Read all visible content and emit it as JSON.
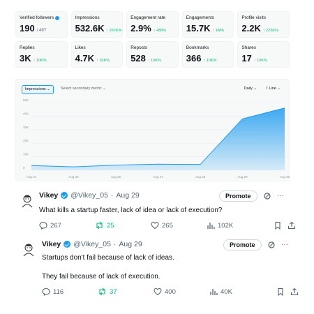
{
  "stats": [
    [
      {
        "label": "Verified followers",
        "value": "190",
        "sub": "/ 497",
        "change": "",
        "verified": true
      },
      {
        "label": "Impressions",
        "value": "532.6K",
        "sub": "",
        "change": "↑ 267K%"
      },
      {
        "label": "Engagement rate",
        "value": "2.9%",
        "sub": "",
        "change": "↑ 486%"
      },
      {
        "label": "Engagements",
        "value": "15.7K",
        "sub": "",
        "change": "↑ 1M%"
      },
      {
        "label": "Profile visits",
        "value": "2.2K",
        "sub": "",
        "change": "↑ 223K%"
      }
    ],
    [
      {
        "label": "Replies",
        "value": "3K",
        "sub": "",
        "change": "↑ 10K%"
      },
      {
        "label": "Likes",
        "value": "4.7K",
        "sub": "",
        "change": "↑ 10K%"
      },
      {
        "label": "Reposts",
        "value": "528",
        "sub": "",
        "change": "↑ 10K%"
      },
      {
        "label": "Bookmarks",
        "value": "366",
        "sub": "",
        "change": "↑ 10K%"
      },
      {
        "label": "Shares",
        "value": "17",
        "sub": "",
        "change": "↑ 10K%"
      }
    ]
  ],
  "chart_toolbar": {
    "metric": "Impressions ⌄",
    "secondary": "Select secondary metric ⌄",
    "period": "Daily ⌄",
    "style": "Line ⌄"
  },
  "chart_data": {
    "type": "area",
    "x": [
      "Aug 24",
      "Aug 25",
      "Aug 26",
      "Aug 27",
      "Aug 28",
      "Aug 29",
      "Aug 30"
    ],
    "values": [
      3500,
      2500,
      3800,
      4500,
      4300,
      38000,
      46000
    ],
    "yticks": [
      "0",
      "10K",
      "20K",
      "30K",
      "40K",
      "50K"
    ],
    "ylim": [
      0,
      50000
    ],
    "color": "#1d9bf0",
    "grid": true
  },
  "tweets": [
    {
      "name": "Vikey",
      "handle": "@Vikey_05",
      "dot": "·",
      "date": "Aug 29",
      "promote": "Promote",
      "lines": [
        "What kills a startup faster, lack of idea or lack of execution?"
      ],
      "replies": "267",
      "reposts": "25",
      "likes": "265",
      "views": "102K"
    },
    {
      "name": "Vikey",
      "handle": "@Vikey_05",
      "dot": "·",
      "date": "Aug 29",
      "promote": "Promote",
      "lines": [
        "Startups don't fail because of lack of ideas.",
        "They fail because of lack of execution."
      ],
      "replies": "116",
      "reposts": "37",
      "likes": "400",
      "views": "40K"
    }
  ],
  "icons": {
    "verified": "verified-badge-icon",
    "reply": "reply-icon",
    "repost": "repost-icon",
    "like": "heart-icon",
    "views": "views-icon",
    "bookmark": "bookmark-icon",
    "share": "share-icon",
    "more": "more-icon",
    "analytics": "analytics-icon"
  },
  "colors": {
    "accent": "#1d9bf0",
    "positive": "#00ba7c",
    "muted": "#536471"
  }
}
